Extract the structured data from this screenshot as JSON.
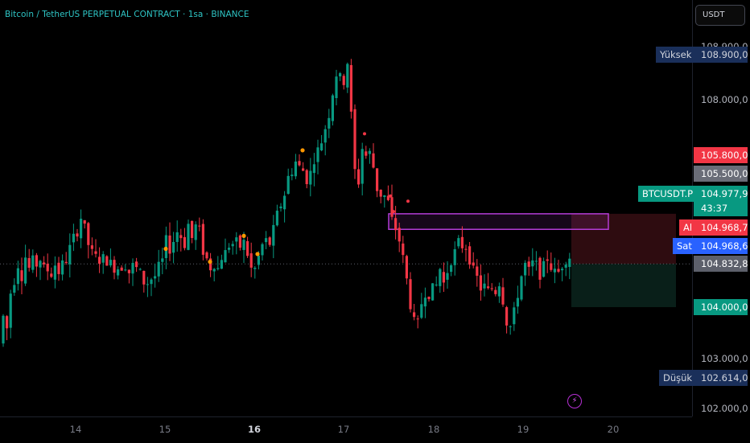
{
  "header": {
    "title": "Bitcoin / TetherUS PERPETUAL CONTRACT · 1sa · BINANCE",
    "currency_button": "USDT"
  },
  "price_axis": {
    "ticks": [
      "108.900,0",
      "108.000,0",
      "103.000,0",
      "102.000,0"
    ],
    "tags": {
      "high_label": "Yüksek",
      "high_value": "108.900,0",
      "stop_value": "105.800,0",
      "box_value": "105.500,0",
      "symbol_label": "BTCUSDT.P",
      "last_value": "104.977,9",
      "countdown": "43:37",
      "buy_label": "Al",
      "buy_value": "104.968,7",
      "sell_label": "Sat",
      "sell_value": "104.968,6",
      "entry_value": "104.832,8",
      "target_value": "104.000,0",
      "low_label": "Düşük",
      "low_value": "102.614,0"
    }
  },
  "time_axis": {
    "labels": [
      "14",
      "15",
      "16",
      "17",
      "18",
      "19",
      "20"
    ],
    "bold_label": "16"
  },
  "colors": {
    "up": "#089981",
    "down": "#f23645",
    "accent": "#2ec4c4",
    "box": "#b33cd6",
    "marker": "#ff9800"
  },
  "chart_data": {
    "type": "candlestick",
    "title": "Bitcoin / TetherUS PERPETUAL CONTRACT · 1sa · BINANCE",
    "x_labels": [
      "14",
      "15",
      "16",
      "17",
      "18",
      "19",
      "20"
    ],
    "y_unit": "USDT",
    "ylim": [
      102000,
      109000
    ],
    "high": 108900,
    "low": 102614,
    "last_price": 104977.9,
    "ask": 104968.7,
    "bid": 104968.6,
    "entry": 104832.8,
    "stop": 105800,
    "target": 104000,
    "box_level_top": 105800,
    "box_level_bottom": 105500,
    "path": [
      [
        0,
        103300
      ],
      [
        3,
        103900
      ],
      [
        8,
        103500
      ],
      [
        12,
        104100
      ],
      [
        16,
        104700
      ],
      [
        19,
        104400
      ],
      [
        23,
        104900
      ],
      [
        27,
        104600
      ],
      [
        32,
        105000
      ],
      [
        37,
        104700
      ],
      [
        41,
        104900
      ],
      [
        45,
        104800
      ],
      [
        49,
        105000
      ],
      [
        53,
        104700
      ],
      [
        57,
        104800
      ],
      [
        62,
        104600
      ],
      [
        66,
        104700
      ],
      [
        70,
        104900
      ],
      [
        74,
        104600
      ],
      [
        78,
        104850
      ],
      [
        82,
        104900
      ],
      [
        86,
        105100
      ],
      [
        90,
        105300
      ],
      [
        94,
        105400
      ],
      [
        97,
        105500
      ],
      [
        100,
        105750
      ],
      [
        104,
        105600
      ],
      [
        108,
        105300
      ],
      [
        112,
        105100
      ],
      [
        116,
        105000
      ],
      [
        120,
        104950
      ],
      [
        125,
        104900
      ],
      [
        129,
        104950
      ],
      [
        133,
        104900
      ],
      [
        137,
        104850
      ],
      [
        141,
        104750
      ],
      [
        145,
        104800
      ],
      [
        149,
        104700
      ],
      [
        153,
        104850
      ],
      [
        157,
        104800
      ],
      [
        161,
        104650
      ],
      [
        165,
        104800
      ],
      [
        169,
        104750
      ],
      [
        173,
        104700
      ],
      [
        178,
        104500
      ],
      [
        182,
        104400
      ],
      [
        186,
        104600
      ],
      [
        190,
        104500
      ],
      [
        194,
        104650
      ],
      [
        198,
        104800
      ],
      [
        202,
        104900
      ],
      [
        206,
        105300
      ],
      [
        210,
        105100
      ],
      [
        214,
        105200
      ],
      [
        218,
        105400
      ],
      [
        222,
        105500
      ],
      [
        226,
        105300
      ],
      [
        230,
        105200
      ],
      [
        234,
        105600
      ],
      [
        238,
        105300
      ],
      [
        242,
        105500
      ],
      [
        246,
        105700
      ],
      [
        250,
        105200
      ],
      [
        254,
        105000
      ],
      [
        258,
        104900
      ],
      [
        262,
        104750
      ],
      [
        266,
        104850
      ],
      [
        270,
        104700
      ],
      [
        274,
        104900
      ],
      [
        278,
        105100
      ],
      [
        282,
        105000
      ],
      [
        286,
        105300
      ],
      [
        290,
        105200
      ],
      [
        294,
        105250
      ],
      [
        298,
        105150
      ],
      [
        302,
        105300
      ],
      [
        306,
        105100
      ],
      [
        310,
        104900
      ],
      [
        314,
        104600
      ],
      [
        318,
        104800
      ],
      [
        322,
        105000
      ],
      [
        326,
        105200
      ],
      [
        330,
        105300
      ],
      [
        334,
        105150
      ],
      [
        338,
        105400
      ],
      [
        342,
        105600
      ],
      [
        346,
        105900
      ],
      [
        350,
        106000
      ],
      [
        354,
        106200
      ],
      [
        358,
        106500
      ],
      [
        362,
        106600
      ],
      [
        366,
        106750
      ],
      [
        370,
        106900
      ],
      [
        374,
        106500
      ],
      [
        378,
        106700
      ],
      [
        382,
        106400
      ],
      [
        386,
        106600
      ],
      [
        390,
        106850
      ],
      [
        394,
        107000
      ],
      [
        398,
        107100
      ],
      [
        402,
        107350
      ],
      [
        406,
        107550
      ],
      [
        410,
        107800
      ],
      [
        414,
        108200
      ],
      [
        418,
        108500
      ],
      [
        421,
        108200
      ],
      [
        424,
        108600
      ],
      [
        428,
        108300
      ],
      [
        432,
        108750
      ],
      [
        436,
        107800
      ],
      [
        440,
        106800
      ],
      [
        444,
        106100
      ],
      [
        448,
        106900
      ],
      [
        452,
        107200
      ],
      [
        456,
        106800
      ],
      [
        460,
        107000
      ],
      [
        464,
        106700
      ],
      [
        468,
        106300
      ],
      [
        472,
        106200
      ],
      [
        476,
        106100
      ],
      [
        480,
        106200
      ],
      [
        484,
        105900
      ],
      [
        488,
        105600
      ],
      [
        492,
        105500
      ],
      [
        496,
        105300
      ],
      [
        500,
        105000
      ],
      [
        504,
        104700
      ],
      [
        508,
        104200
      ],
      [
        512,
        103900
      ],
      [
        516,
        103600
      ],
      [
        520,
        103700
      ],
      [
        524,
        104100
      ],
      [
        528,
        104300
      ],
      [
        532,
        104200
      ],
      [
        536,
        104450
      ],
      [
        540,
        104200
      ],
      [
        544,
        104600
      ],
      [
        548,
        104800
      ],
      [
        552,
        104400
      ],
      [
        556,
        104700
      ],
      [
        560,
        104900
      ],
      [
        564,
        105000
      ],
      [
        568,
        105200
      ],
      [
        572,
        105300
      ],
      [
        576,
        105100
      ],
      [
        580,
        105200
      ],
      [
        584,
        104900
      ],
      [
        588,
        104700
      ],
      [
        592,
        104600
      ],
      [
        596,
        104400
      ],
      [
        600,
        104300
      ],
      [
        604,
        104500
      ],
      [
        608,
        104200
      ],
      [
        612,
        104400
      ],
      [
        616,
        104300
      ],
      [
        620,
        104500
      ],
      [
        624,
        104250
      ],
      [
        628,
        103800
      ],
      [
        632,
        103600
      ],
      [
        636,
        103650
      ],
      [
        640,
        104000
      ],
      [
        644,
        104300
      ],
      [
        648,
        104600
      ],
      [
        652,
        104850
      ],
      [
        656,
        104650
      ],
      [
        660,
        104800
      ],
      [
        664,
        104900
      ],
      [
        668,
        104750
      ],
      [
        672,
        104600
      ],
      [
        676,
        104800
      ],
      [
        680,
        104950
      ],
      [
        684,
        104800
      ],
      [
        688,
        104700
      ],
      [
        692,
        104600
      ],
      [
        696,
        104750
      ],
      [
        700,
        104850
      ],
      [
        704,
        104950
      ],
      [
        708,
        104978
      ]
    ]
  }
}
